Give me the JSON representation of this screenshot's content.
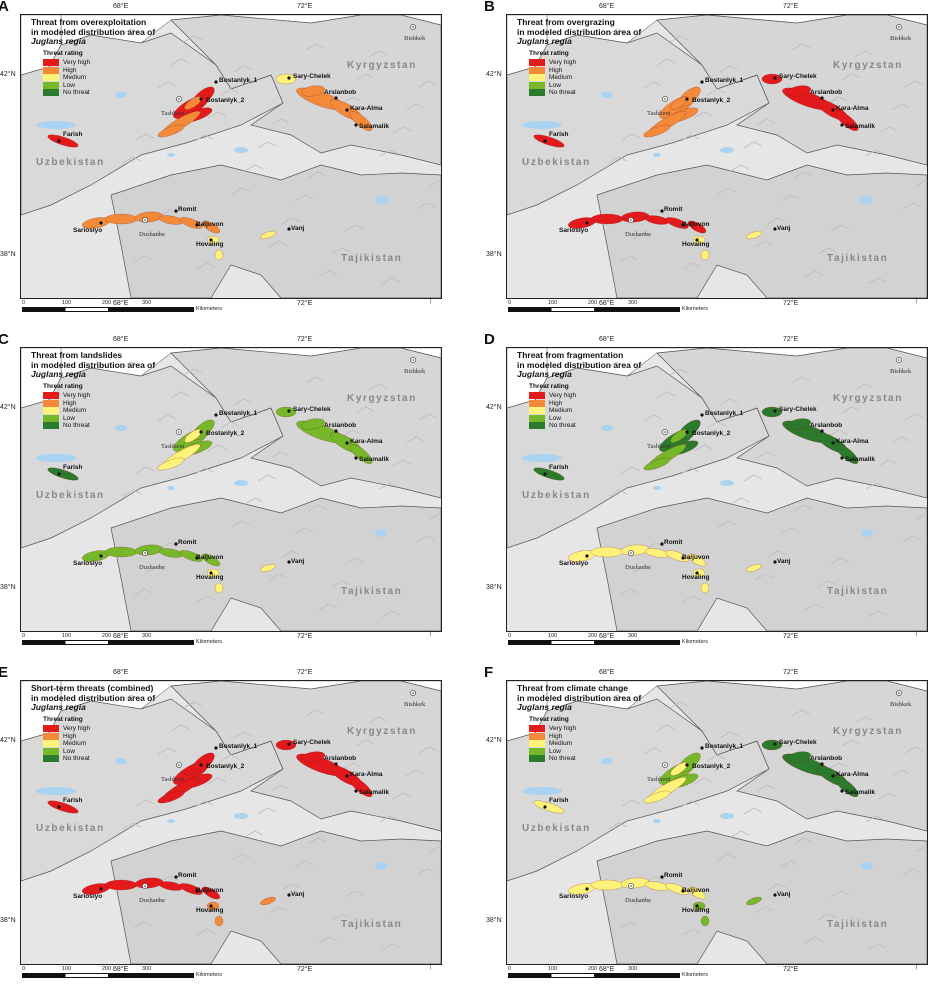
{
  "legend": {
    "title": "Threat rating",
    "classes": [
      {
        "label": "Very high",
        "color": "#e31a1c"
      },
      {
        "label": "High",
        "color": "#f28a3a"
      },
      {
        "label": "Medium",
        "color": "#fff27a"
      },
      {
        "label": "Low",
        "color": "#76b82a"
      },
      {
        "label": "No threat",
        "color": "#2c7a2c"
      }
    ]
  },
  "axes": {
    "lon": [
      "68°E",
      "72°E"
    ],
    "lat": [
      "42°N",
      "38°N"
    ]
  },
  "countries": [
    "Kyrgyzstan",
    "Uzbekistan",
    "Tajikistan"
  ],
  "cities": [
    "Bishkek",
    "Tashkent",
    "Dushanbe"
  ],
  "sites": [
    "Bostanlyk_1",
    "Bostanlyk_2",
    "Sary-Chelek",
    "Arslanbob",
    "Kara-Alma",
    "Salamalik",
    "Farish",
    "Romit",
    "Sariosiyo",
    "Baljuvon",
    "Hovaling",
    "Vanj"
  ],
  "scale": {
    "ticks": [
      "0",
      "100",
      "200",
      "300"
    ],
    "unit": "Kilometers"
  },
  "panels": [
    {
      "letter": "A",
      "title1": "Threat from overexploitation",
      "title2": "in modeled distribution area of",
      "species": "Juglans regia",
      "colors": {
        "west": "#e31a1c",
        "bost": "#f28a3a",
        "east": "#f28a3a",
        "sary": "#fff27a",
        "farish": "#e31a1c",
        "south": "#f28a3a",
        "tip": "#fff27a"
      }
    },
    {
      "letter": "B",
      "title1": "Threat from overgrazing",
      "title2": "in modeled distribution area of",
      "species": "Juglans regia",
      "colors": {
        "west": "#f28a3a",
        "bost": "#f28a3a",
        "east": "#e31a1c",
        "sary": "#e31a1c",
        "farish": "#e31a1c",
        "south": "#e31a1c",
        "tip": "#fff27a"
      }
    },
    {
      "letter": "C",
      "title1": "Threat from landslides",
      "title2": "in modeled distribution area of",
      "species": "Juglans regia",
      "colors": {
        "west": "#76b82a",
        "bost": "#fff27a",
        "east": "#76b82a",
        "sary": "#76b82a",
        "farish": "#2c7a2c",
        "south": "#76b82a",
        "tip": "#fff27a"
      }
    },
    {
      "letter": "D",
      "title1": "Threat from fragmentation",
      "title2": "in modeled distribution area of",
      "species": "Juglans regia",
      "colors": {
        "west": "#2c7a2c",
        "bost": "#76b82a",
        "east": "#2c7a2c",
        "sary": "#2c7a2c",
        "farish": "#2c7a2c",
        "south": "#fff27a",
        "tip": "#fff27a"
      }
    },
    {
      "letter": "E",
      "title1": "Short-term threats (combined)",
      "title2": "in modeled distribution area of",
      "species": "Juglans regia",
      "colors": {
        "west": "#e31a1c",
        "bost": "#e31a1c",
        "east": "#e31a1c",
        "sary": "#e31a1c",
        "farish": "#e31a1c",
        "south": "#e31a1c",
        "tip": "#f28a3a"
      }
    },
    {
      "letter": "F",
      "title1": "Threat from climate change",
      "title2": "in modeled distribution area of",
      "species": "Juglans regia",
      "colors": {
        "west": "#76b82a",
        "bost": "#fff27a",
        "east": "#2c7a2c",
        "sary": "#2c7a2c",
        "farish": "#fff27a",
        "south": "#fff27a",
        "tip": "#76b82a"
      }
    }
  ]
}
